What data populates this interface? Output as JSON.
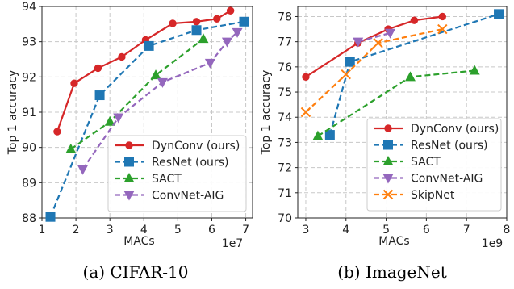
{
  "captions": [
    "(a) CIFAR-10",
    "(b) ImageNet"
  ],
  "chart_data": [
    {
      "type": "line",
      "xlabel": "MACs",
      "ylabel": "Top 1 accuracy",
      "x_multiplier": "1e7",
      "xlim": [
        1,
        7.2
      ],
      "ylim": [
        88,
        94
      ],
      "xticks": [
        "1",
        "2",
        "3",
        "4",
        "5",
        "6",
        "7"
      ],
      "yticks": [
        "88",
        "89",
        "90",
        "91",
        "92",
        "93",
        "94"
      ],
      "grid": true,
      "legend_position": "lower-right",
      "series": [
        {
          "name": "DynConv (ours)",
          "color": "#d62728",
          "marker": "circle",
          "dash": "solid",
          "x": [
            1.45,
            1.95,
            2.65,
            3.35,
            4.05,
            4.85,
            5.55,
            6.15,
            6.55
          ],
          "y": [
            90.45,
            91.82,
            92.25,
            92.57,
            93.05,
            93.52,
            93.57,
            93.65,
            93.88
          ]
        },
        {
          "name": "ResNet (ours)",
          "color": "#1f77b4",
          "marker": "square",
          "dash": "dashed",
          "x": [
            1.25,
            2.7,
            4.15,
            5.55,
            6.95
          ],
          "y": [
            88.03,
            91.48,
            92.88,
            93.33,
            93.57
          ]
        },
        {
          "name": "SACT",
          "color": "#2ca02c",
          "marker": "triangle-up",
          "dash": "dashed",
          "x": [
            1.85,
            3.0,
            4.35,
            5.75
          ],
          "y": [
            89.95,
            90.73,
            92.05,
            93.08
          ]
        },
        {
          "name": "ConvNet-AIG",
          "color": "#9467bd",
          "marker": "triangle-down",
          "dash": "dashed",
          "x": [
            2.2,
            3.25,
            4.55,
            5.95,
            6.45,
            6.75
          ],
          "y": [
            89.38,
            90.85,
            91.85,
            92.4,
            93.0,
            93.27
          ]
        }
      ]
    },
    {
      "type": "line",
      "xlabel": "MACs",
      "ylabel": "Top 1 accuracy",
      "x_multiplier": "1e9",
      "xlim": [
        2.8,
        8.0
      ],
      "ylim": [
        70,
        78.4
      ],
      "xticks": [
        "3",
        "4",
        "5",
        "6",
        "7",
        "8"
      ],
      "yticks": [
        "70",
        "71",
        "72",
        "73",
        "74",
        "75",
        "76",
        "77",
        "78"
      ],
      "grid": true,
      "legend_position": "lower-right",
      "series": [
        {
          "name": "DynConv (ours)",
          "color": "#d62728",
          "marker": "circle",
          "dash": "solid",
          "x": [
            3.0,
            4.3,
            5.05,
            5.7,
            6.4
          ],
          "y": [
            75.6,
            76.95,
            77.5,
            77.85,
            78.0
          ]
        },
        {
          "name": "ResNet (ours)",
          "color": "#1f77b4",
          "marker": "square",
          "dash": "dashed",
          "x": [
            3.6,
            4.1,
            7.8
          ],
          "y": [
            73.3,
            76.2,
            78.1
          ]
        },
        {
          "name": "SACT",
          "color": "#2ca02c",
          "marker": "triangle-up",
          "dash": "dashed",
          "x": [
            3.3,
            5.6,
            7.2
          ],
          "y": [
            73.25,
            75.6,
            75.85
          ]
        },
        {
          "name": "ConvNet-AIG",
          "color": "#9467bd",
          "marker": "triangle-down",
          "dash": "dashed",
          "x": [
            4.3,
            5.1
          ],
          "y": [
            77.0,
            77.35
          ]
        },
        {
          "name": "SkipNet",
          "color": "#ff7f0e",
          "marker": "x",
          "dash": "dashed",
          "x": [
            3.0,
            4.0,
            4.8,
            6.4
          ],
          "y": [
            74.2,
            75.7,
            76.95,
            77.5
          ]
        }
      ]
    }
  ]
}
